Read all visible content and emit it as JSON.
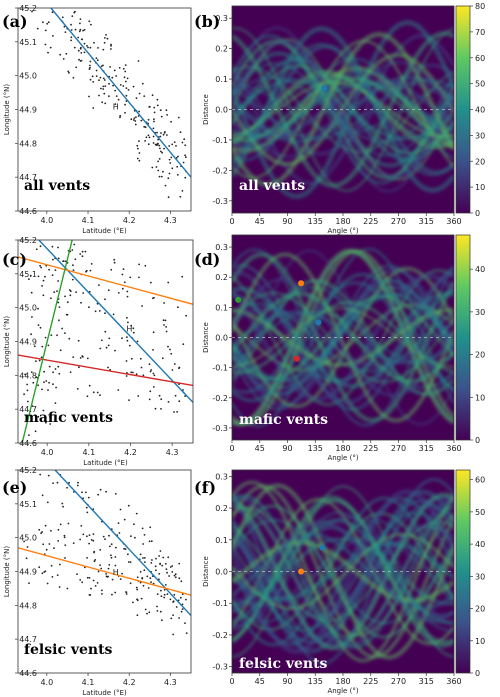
{
  "chart_data": [
    {
      "panel": "(a)",
      "type": "scatter",
      "label": "all vents",
      "xlabel": "Latitude (°E)",
      "ylabel": "Longitude (°N)",
      "xlim": [
        3.93,
        4.35
      ],
      "ylim": [
        44.6,
        45.2
      ],
      "xticks": [
        "4.0",
        "4.1",
        "4.2",
        "4.3"
      ],
      "yticks": [
        "44.6",
        "44.7",
        "44.8",
        "44.9",
        "45.0",
        "45.1",
        "45.2"
      ],
      "lines": [
        {
          "color": "#1f77b4",
          "x": [
            4.01,
            4.35
          ],
          "y": [
            45.2,
            44.7
          ]
        }
      ],
      "annotations": [
        {
          "text": "H",
          "x": 4.16,
          "y": 44.9
        }
      ]
    },
    {
      "panel": "(b)",
      "type": "heatmap",
      "label": "all vents",
      "xlabel": "Angle (°)",
      "ylabel": "Distance",
      "xlim": [
        0,
        360
      ],
      "ylim": [
        -0.34,
        0.34
      ],
      "xticks": [
        "0",
        "45",
        "90",
        "135",
        "180",
        "225",
        "270",
        "315",
        "360"
      ],
      "yticks": [
        "-0.3",
        "-0.2",
        "-0.1",
        "0.0",
        "0.1",
        "0.2",
        "0.3"
      ],
      "colorbar": {
        "range": [
          0,
          80
        ],
        "ticks": [
          "0",
          "10",
          "20",
          "30",
          "40",
          "50",
          "60",
          "70",
          "80"
        ]
      },
      "peaks": [
        {
          "angle": 150,
          "distance": 0.07,
          "color": "#1f77b4"
        }
      ]
    },
    {
      "panel": "(c)",
      "type": "scatter",
      "label": "mafic vents",
      "xlabel": "Latitude (°E)",
      "ylabel": "Longitude (°N)",
      "xlim": [
        3.93,
        4.35
      ],
      "ylim": [
        44.6,
        45.2
      ],
      "xticks": [
        "4.0",
        "4.1",
        "4.2",
        "4.3"
      ],
      "yticks": [
        "44.6",
        "44.7",
        "44.8",
        "44.9",
        "45.0",
        "45.1",
        "45.2"
      ],
      "lines": [
        {
          "color": "#1f77b4",
          "x": [
            3.98,
            4.35
          ],
          "y": [
            45.2,
            44.72
          ]
        },
        {
          "color": "#ff7f0e",
          "x": [
            3.93,
            4.35
          ],
          "y": [
            45.15,
            45.01
          ]
        },
        {
          "color": "#d62728",
          "x": [
            3.93,
            4.35
          ],
          "y": [
            44.86,
            44.77
          ]
        },
        {
          "color": "#2ca02c",
          "x": [
            3.94,
            4.06
          ],
          "y": [
            44.6,
            45.2
          ]
        }
      ],
      "annotations": [
        {
          "text": "H",
          "x": 4.19,
          "y": 44.93
        }
      ]
    },
    {
      "panel": "(d)",
      "type": "heatmap",
      "label": "mafic vents",
      "xlabel": "Angle (°)",
      "ylabel": "Distance",
      "xlim": [
        0,
        360
      ],
      "ylim": [
        -0.34,
        0.34
      ],
      "xticks": [
        "0",
        "45",
        "90",
        "135",
        "180",
        "225",
        "270",
        "315",
        "360"
      ],
      "yticks": [
        "-0.3",
        "-0.2",
        "-0.1",
        "0.0",
        "0.1",
        "0.2",
        "0.3"
      ],
      "colorbar": {
        "range": [
          0,
          48
        ],
        "ticks": [
          "0",
          "10",
          "20",
          "30",
          "40"
        ]
      },
      "peaks": [
        {
          "angle": 10,
          "distance": 0.125,
          "color": "#2ca02c"
        },
        {
          "angle": 112,
          "distance": 0.18,
          "color": "#ff7f0e"
        },
        {
          "angle": 105,
          "distance": -0.07,
          "color": "#d62728"
        },
        {
          "angle": 140,
          "distance": 0.05,
          "color": "#1f77b4"
        }
      ]
    },
    {
      "panel": "(e)",
      "type": "scatter",
      "label": "felsic vents",
      "xlabel": "Latitude (°E)",
      "ylabel": "Longitude (°N)",
      "xlim": [
        3.93,
        4.35
      ],
      "ylim": [
        44.6,
        45.2
      ],
      "xticks": [
        "4.0",
        "4.1",
        "4.2",
        "4.3"
      ],
      "yticks": [
        "44.6",
        "44.7",
        "44.8",
        "44.9",
        "45.0",
        "45.1",
        "45.2"
      ],
      "lines": [
        {
          "color": "#1f77b4",
          "x": [
            4.02,
            4.35
          ],
          "y": [
            45.2,
            44.77
          ]
        },
        {
          "color": "#ff7f0e",
          "x": [
            3.93,
            4.35
          ],
          "y": [
            44.97,
            44.83
          ]
        }
      ],
      "annotations": [
        {
          "text": "H",
          "x": 4.16,
          "y": 44.89
        }
      ]
    },
    {
      "panel": "(f)",
      "type": "heatmap",
      "label": "felsic vents",
      "xlabel": "Angle (°)",
      "ylabel": "Distance",
      "xlim": [
        0,
        360
      ],
      "ylim": [
        -0.32,
        0.32
      ],
      "xticks": [
        "0",
        "45",
        "90",
        "135",
        "180",
        "225",
        "270",
        "315",
        "360"
      ],
      "yticks": [
        "-0.3",
        "-0.2",
        "-0.1",
        "0.0",
        "0.1",
        "0.2",
        "0.3"
      ],
      "colorbar": {
        "range": [
          0,
          63
        ],
        "ticks": [
          "0",
          "10",
          "20",
          "30",
          "40",
          "50",
          "60"
        ]
      },
      "peaks": [
        {
          "angle": 147,
          "distance": 0.075,
          "color": "#1f77b4"
        },
        {
          "angle": 112,
          "distance": 0.0,
          "color": "#ff7f0e"
        }
      ]
    }
  ]
}
